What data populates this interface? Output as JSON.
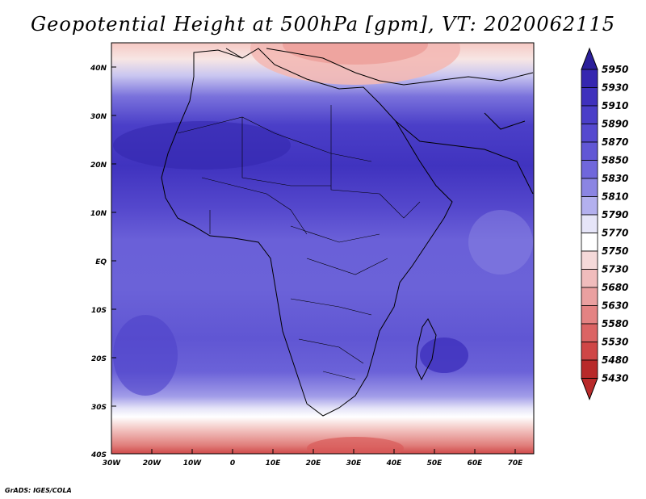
{
  "title": "Geopotential Height at 500hPa [gpm], VT: 2020062115",
  "footer": "GrADS: IGES/COLA",
  "map": {
    "lat_labels": [
      "40N",
      "30N",
      "20N",
      "10N",
      "EQ",
      "10S",
      "20S",
      "30S",
      "40S"
    ],
    "lon_labels": [
      "30W",
      "20W",
      "10W",
      "0",
      "10E",
      "20E",
      "30E",
      "40E",
      "50E",
      "60E",
      "70E"
    ]
  },
  "colorbar": {
    "levels": [
      "5950",
      "5930",
      "5910",
      "5890",
      "5870",
      "5850",
      "5830",
      "5810",
      "5790",
      "5770",
      "5750",
      "5730",
      "5680",
      "5630",
      "5580",
      "5530",
      "5480",
      "5430"
    ],
    "colors": [
      "#2b1f9a",
      "#3526b0",
      "#3f31bd",
      "#4a3ec8",
      "#5549cf",
      "#6157d5",
      "#7067db",
      "#8b85e3",
      "#b3b0ee",
      "#e6e5f8",
      "#ffffff",
      "#f5d9d9",
      "#f0bcbc",
      "#eaa0a0",
      "#e48383",
      "#db6464",
      "#cf4646",
      "#b82a2a"
    ]
  }
}
